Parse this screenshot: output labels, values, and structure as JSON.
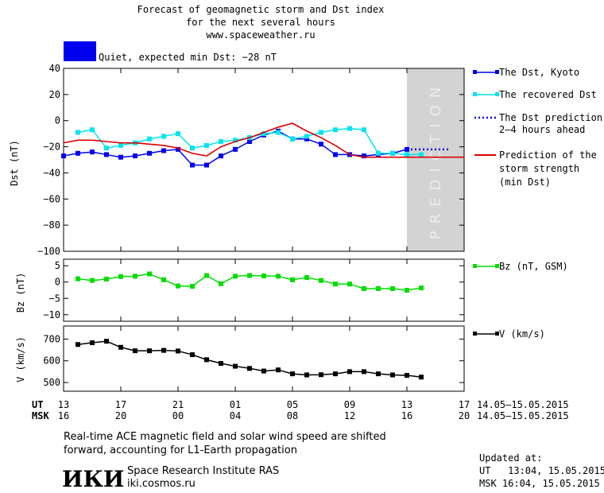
{
  "header": {
    "title_line1": "Forecast of geomagnetic storm and Dst index",
    "title_line2": "for the next several hours",
    "url": "www.spaceweather.ru",
    "status": "Quiet, expected min Dst: −28 nT"
  },
  "colors": {
    "dst": "#0000ee",
    "recovered": "#00e5ee",
    "dst_prediction": "#0000ee",
    "storm_strength": "#dd0000",
    "bz": "#00dd00",
    "speed": "#000000",
    "prediction_band": "#d3d3d3",
    "status_box": "#0000ee"
  },
  "chart_data": [
    {
      "type": "line",
      "name": "dst-panel",
      "ylabel": "Dst (nT)",
      "ylim": [
        -100,
        40
      ],
      "yticks": [
        40,
        20,
        0,
        -20,
        -40,
        -60,
        -80,
        -100
      ],
      "xlim": [
        13,
        41
      ],
      "prediction_band": {
        "from": 37,
        "to": 41,
        "label": "PREDICTION"
      },
      "series": [
        {
          "name": "The Dst, Kyoto",
          "marker": "square",
          "x": [
            13,
            14,
            15,
            16,
            17,
            18,
            19,
            20,
            21,
            22,
            23,
            24,
            25,
            26,
            27,
            28,
            29,
            30,
            31,
            32,
            33,
            34,
            35,
            36,
            37
          ],
          "y": [
            -27,
            -25,
            -24,
            -26,
            -28,
            -27,
            -25,
            -23,
            -22,
            -34,
            -34,
            -27,
            -22,
            -16,
            -11,
            -8,
            -14,
            -14,
            -18,
            -26,
            -26,
            -27,
            -26,
            -25,
            -22
          ]
        },
        {
          "name": "The recovered Dst",
          "marker": "square",
          "x": [
            14,
            15,
            16,
            17,
            18,
            19,
            20,
            21,
            22,
            23,
            24,
            25,
            26,
            27,
            28,
            29,
            30,
            31,
            32,
            33,
            34,
            35,
            36,
            37,
            38
          ],
          "y": [
            -9,
            -7,
            -21,
            -19,
            -17,
            -14,
            -12,
            -10,
            -21,
            -19,
            -16,
            -15,
            -13,
            -10,
            -9,
            -14,
            -12,
            -9,
            -7,
            -6,
            -7,
            -25,
            -25,
            -26,
            -26
          ]
        },
        {
          "name": "The Dst prediction 2–4 hours ahead",
          "style": "dotted",
          "x": [
            37,
            38,
            39,
            40
          ],
          "y": [
            -22,
            -22,
            -22,
            -22
          ]
        },
        {
          "name": "Prediction of the storm strength (min Dst)",
          "style": "solid",
          "x": [
            13,
            14,
            15,
            16,
            17,
            18,
            19,
            20,
            21,
            22,
            23,
            24,
            25,
            26,
            27,
            28,
            29,
            30,
            31,
            32,
            33,
            34,
            35,
            36,
            37,
            38,
            39,
            40,
            41
          ],
          "y": [
            -17,
            -15,
            -15,
            -16,
            -17,
            -17,
            -18,
            -19,
            -21,
            -25,
            -27,
            -20,
            -16,
            -13,
            -9,
            -5,
            -2,
            -8,
            -13,
            -19,
            -26,
            -28,
            -28,
            -28,
            -28,
            -28,
            -28,
            -28,
            -28
          ]
        }
      ]
    },
    {
      "type": "line",
      "name": "bz-panel",
      "ylabel": "Bz (nT)",
      "ylim": [
        -12,
        7
      ],
      "yticks": [
        5,
        0,
        -5,
        -10
      ],
      "xlim": [
        13,
        41
      ],
      "series": [
        {
          "name": "Bz (nT, GSM)",
          "marker": "square",
          "x": [
            14,
            15,
            16,
            17,
            18,
            19,
            20,
            21,
            22,
            23,
            24,
            25,
            26,
            27,
            28,
            29,
            30,
            31,
            32,
            33,
            34,
            35,
            36,
            37,
            38
          ],
          "y": [
            1,
            0.5,
            0.9,
            1.7,
            1.8,
            2.5,
            0.7,
            -1.2,
            -1.3,
            2,
            -0.5,
            1.8,
            2,
            1.9,
            1.8,
            0.7,
            1.4,
            0.5,
            -0.6,
            -0.6,
            -2,
            -2,
            -2,
            -2.5,
            -1.8
          ]
        }
      ]
    },
    {
      "type": "line",
      "name": "speed-panel",
      "ylabel": "V (km/s)",
      "ylim": [
        460,
        760
      ],
      "yticks": [
        700,
        600,
        500
      ],
      "xlim": [
        13,
        41
      ],
      "series": [
        {
          "name": "V (km/s)",
          "marker": "square",
          "x": [
            14,
            15,
            16,
            17,
            18,
            19,
            20,
            21,
            22,
            23,
            24,
            25,
            26,
            27,
            28,
            29,
            30,
            31,
            32,
            33,
            34,
            35,
            36,
            37,
            38
          ],
          "y": [
            675,
            683,
            690,
            662,
            646,
            646,
            648,
            645,
            628,
            605,
            588,
            575,
            565,
            553,
            558,
            540,
            535,
            536,
            540,
            550,
            550,
            540,
            535,
            533,
            525
          ]
        }
      ]
    }
  ],
  "x_axis": {
    "ut_label": "UT",
    "msk_label": "MSK",
    "ut_ticks": [
      {
        "x": 13,
        "label": "13"
      },
      {
        "x": 17,
        "label": "17"
      },
      {
        "x": 21,
        "label": "21"
      },
      {
        "x": 25,
        "label": "01"
      },
      {
        "x": 29,
        "label": "05"
      },
      {
        "x": 33,
        "label": "09"
      },
      {
        "x": 37,
        "label": "13"
      },
      {
        "x": 41,
        "label": "17"
      }
    ],
    "msk_ticks": [
      {
        "x": 13,
        "label": "16"
      },
      {
        "x": 17,
        "label": "20"
      },
      {
        "x": 21,
        "label": "00"
      },
      {
        "x": 25,
        "label": "04"
      },
      {
        "x": 29,
        "label": "08"
      },
      {
        "x": 33,
        "label": "12"
      },
      {
        "x": 37,
        "label": "16"
      },
      {
        "x": 41,
        "label": "20"
      }
    ],
    "ut_range": "14.05–15.05.2015",
    "msk_range": "14.05–15.05.2015"
  },
  "legend": {
    "dst": "The Dst, Kyoto",
    "recovered": "The recovered Dst",
    "prediction_line1": "The Dst prediction",
    "prediction_line2": "2–4 hours ahead",
    "storm_line1": "Prediction of the",
    "storm_line2": "storm strength",
    "storm_line3": "(min Dst)",
    "bz": "Bz (nT, GSM)",
    "speed": "V (km/s)"
  },
  "footer": {
    "note_line1": "Real-time ACE magnetic field and solar wind speed are shifted",
    "note_line2": "forward, accounting for L1-Earth propagation",
    "logo": "ИКИ",
    "institute": "Space Research Institute RAS",
    "site": "iki.cosmos.ru",
    "updated_label": "Updated at:",
    "updated_ut": "UT   13:04, 15.05.2015",
    "updated_msk": "MSK 16:04, 15.05.2015"
  }
}
